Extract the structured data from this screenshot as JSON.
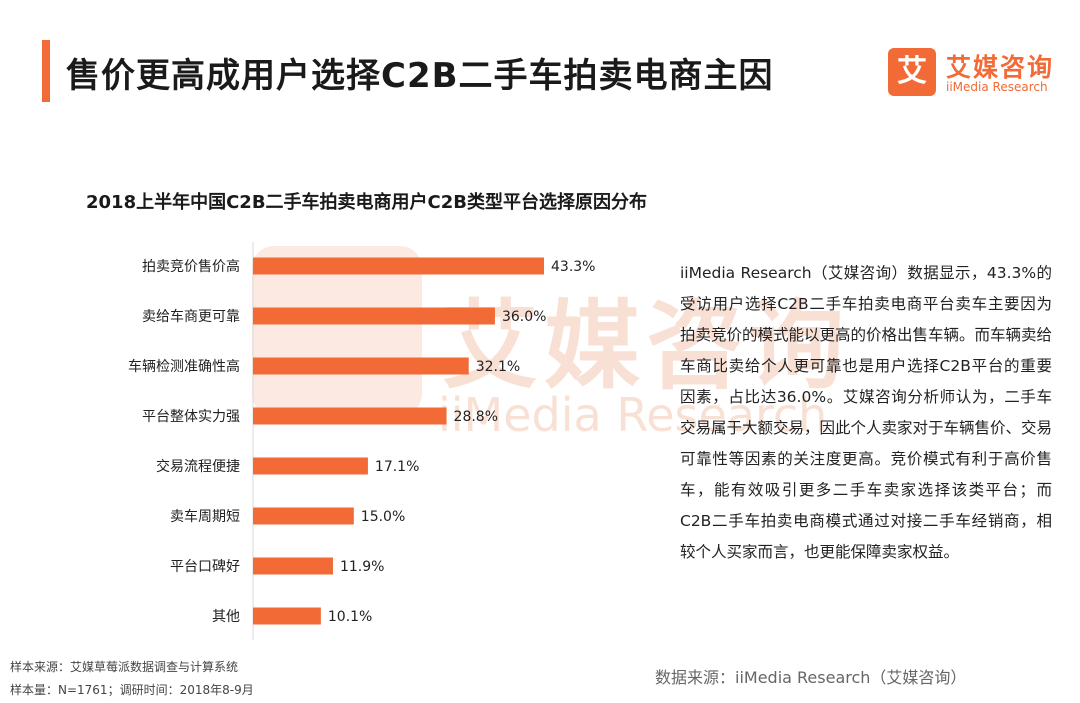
{
  "header": {
    "title": "售价更高成用户选择C2B二手车拍卖电商主因",
    "logo_mark": "艾",
    "logo_cn": "艾媒咨询",
    "logo_en": "iiMedia Research",
    "accent_color": "#f26a35"
  },
  "chart_data": {
    "type": "bar",
    "orientation": "horizontal",
    "title": "2018上半年中国C2B二手车拍卖电商用户C2B类型平台选择原因分布",
    "categories": [
      "拍卖竞价售价高",
      "卖给车商更可靠",
      "车辆检测准确性高",
      "平台整体实力强",
      "交易流程便捷",
      "卖车周期短",
      "平台口碑好",
      "其他"
    ],
    "values": [
      43.3,
      36.0,
      32.1,
      28.8,
      17.1,
      15.0,
      11.9,
      10.1
    ],
    "value_labels": [
      "43.3%",
      "36.0%",
      "32.1%",
      "28.8%",
      "17.1%",
      "15.0%",
      "11.9%",
      "10.1%"
    ],
    "unit": "%",
    "bar_color": "#f26a35",
    "grid": false,
    "legend": "none"
  },
  "analysis": {
    "text": "iiMedia Research（艾媒咨询）数据显示，43.3%的受访用户选择C2B二手车拍卖电商平台卖车主要因为拍卖竞价的模式能以更高的价格出售车辆。而车辆卖给车商比卖给个人更可靠也是用户选择C2B平台的重要因素，占比达36.0%。艾媒咨询分析师认为，二手车交易属于大额交易，因此个人卖家对于车辆售价、交易可靠性等因素的关注度更高。竞价模式有利于高价售车，能有效吸引更多二手车卖家选择该类平台；而C2B二手车拍卖电商模式通过对接二手车经销商，相较个人买家而言，也更能保障卖家权益。"
  },
  "footer": {
    "sample_source": "样本来源：艾媒草莓派数据调查与计算系统",
    "sample_size": "样本量：N=1761；调研时间：2018年8-9月",
    "data_source": "数据来源：iiMedia Research（艾媒咨询）"
  }
}
